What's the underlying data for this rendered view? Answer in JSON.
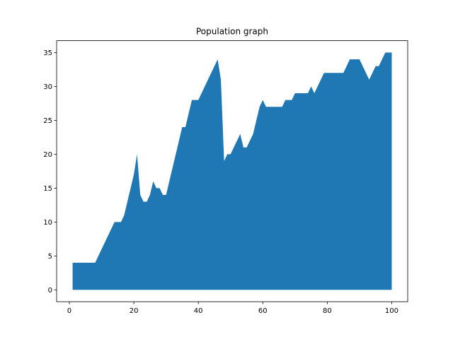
{
  "chart_data": {
    "type": "area",
    "title": "Population graph",
    "xlabel": "",
    "ylabel": "",
    "xlim": [
      -3.95,
      104.95
    ],
    "ylim": [
      -1.75,
      36.75
    ],
    "xticks": [
      0,
      20,
      40,
      60,
      80,
      100
    ],
    "yticks": [
      0,
      5,
      10,
      15,
      20,
      25,
      30,
      35
    ],
    "grid": false,
    "fill_color": "#1f77b4",
    "series": [
      {
        "x": [
          1,
          2,
          3,
          4,
          5,
          6,
          7,
          8,
          9,
          10,
          11,
          12,
          13,
          14,
          15,
          16,
          17,
          18,
          19,
          20,
          21,
          22,
          23,
          24,
          25,
          26,
          27,
          28,
          29,
          30,
          31,
          32,
          33,
          34,
          35,
          36,
          37,
          38,
          39,
          40,
          41,
          42,
          43,
          44,
          45,
          46,
          47,
          48,
          49,
          50,
          51,
          52,
          53,
          54,
          55,
          56,
          57,
          58,
          59,
          60,
          61,
          62,
          63,
          64,
          65,
          66,
          67,
          68,
          69,
          70,
          71,
          72,
          73,
          74,
          75,
          76,
          77,
          78,
          79,
          80,
          81,
          82,
          83,
          84,
          85,
          86,
          87,
          88,
          89,
          90,
          91,
          92,
          93,
          94,
          95,
          96,
          97,
          98,
          99,
          100
        ],
        "values": [
          4,
          4,
          4,
          4,
          4,
          4,
          4,
          4,
          5,
          6,
          7,
          8,
          9,
          10,
          10,
          10,
          11,
          13,
          15,
          17,
          20,
          14,
          13,
          13,
          14,
          16,
          15,
          15,
          14,
          14,
          16,
          18,
          20,
          22,
          24,
          24,
          26,
          28,
          28,
          28,
          29,
          30,
          31,
          32,
          33,
          34,
          31,
          19,
          20,
          20,
          21,
          22,
          23,
          21,
          21,
          22,
          23,
          25,
          27,
          28,
          27,
          27,
          27,
          27,
          27,
          27,
          28,
          28,
          28,
          29,
          29,
          29,
          29,
          29,
          30,
          29,
          30,
          31,
          32,
          32,
          32,
          32,
          32,
          32,
          32,
          33,
          34,
          34,
          34,
          34,
          33,
          32,
          31,
          32,
          33,
          33,
          34,
          35,
          35,
          35
        ]
      }
    ]
  }
}
